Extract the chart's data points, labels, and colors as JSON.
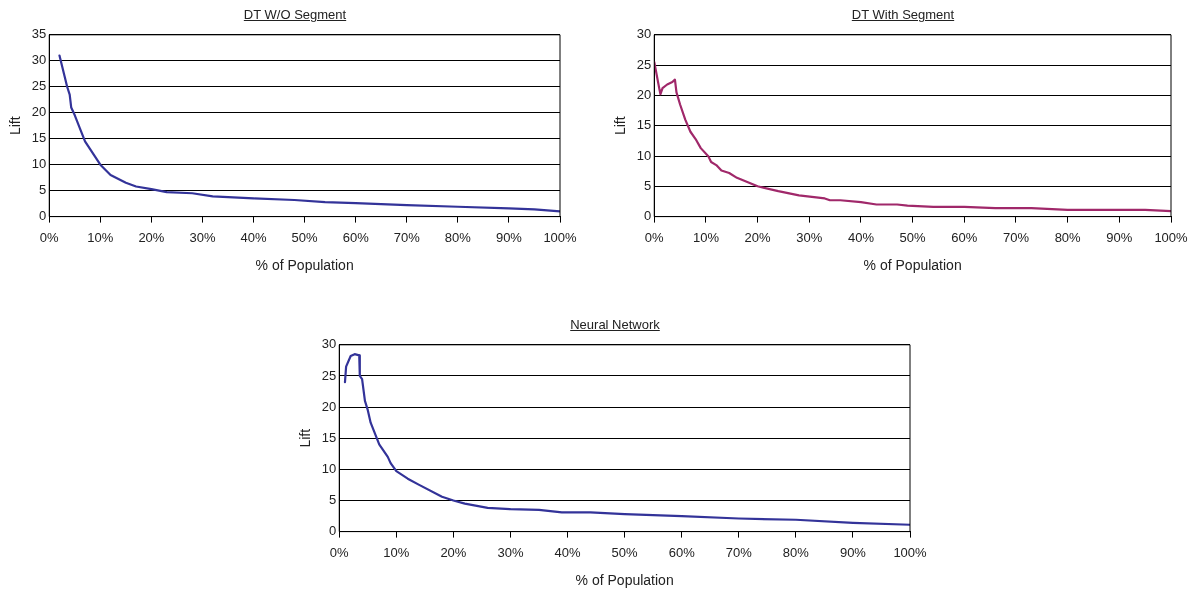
{
  "chart_data": [
    {
      "type": "line",
      "title": "DT W/O Segment",
      "xlabel": "% of Population",
      "ylabel": "Lift",
      "grid": "y",
      "marker": "none",
      "x": [
        2,
        3,
        3.5,
        4,
        4.3,
        5,
        6,
        7,
        8,
        10,
        12,
        15,
        17,
        20,
        23,
        28,
        32,
        40,
        48,
        54,
        60,
        70,
        80,
        90,
        95,
        100
      ],
      "series": [
        {
          "color": "#333399",
          "values": [
            31,
            27,
            25,
            23.5,
            21,
            19.5,
            17,
            14.5,
            13,
            10,
            8,
            6.5,
            5.8,
            5.3,
            4.7,
            4.5,
            3.9,
            3.5,
            3.2,
            2.8,
            2.6,
            2.2,
            1.9,
            1.6,
            1.4,
            1.0
          ]
        }
      ],
      "xlim": [
        0,
        100
      ],
      "ylim": [
        0,
        35
      ],
      "xticks": [
        {
          "value": 0,
          "label": "0%"
        },
        {
          "value": 10,
          "label": "10%"
        },
        {
          "value": 20,
          "label": "20%"
        },
        {
          "value": 30,
          "label": "30%"
        },
        {
          "value": 40,
          "label": "40%"
        },
        {
          "value": 50,
          "label": "50%"
        },
        {
          "value": 60,
          "label": "60%"
        },
        {
          "value": 70,
          "label": "70%"
        },
        {
          "value": 80,
          "label": "80%"
        },
        {
          "value": 90,
          "label": "90%"
        },
        {
          "value": 100,
          "label": "100%"
        }
      ],
      "yticks": [
        0,
        5,
        10,
        15,
        20,
        25,
        30,
        35
      ]
    },
    {
      "type": "line",
      "title": "DT With Segment",
      "xlabel": "% of Population",
      "ylabel": "Lift",
      "grid": "y",
      "marker": "none",
      "x": [
        0,
        1,
        1.2,
        1.6,
        2.5,
        3.5,
        4,
        4.3,
        5,
        6,
        7,
        8,
        9,
        10.5,
        11,
        12,
        13,
        14.5,
        16,
        20,
        24,
        28,
        33,
        34,
        36,
        40,
        43,
        47,
        49,
        54,
        60,
        66,
        73,
        80,
        90,
        95,
        100
      ],
      "series": [
        {
          "color": "#a0286a",
          "values": [
            25.5,
            21,
            20.2,
            21.2,
            21.8,
            22.2,
            22.6,
            20.5,
            18.5,
            16,
            14,
            12.8,
            11.3,
            9.9,
            9,
            8.5,
            7.6,
            7.2,
            6.4,
            5,
            4.2,
            3.5,
            3,
            2.7,
            2.7,
            2.4,
            2,
            2,
            1.8,
            1.6,
            1.6,
            1.4,
            1.4,
            1.1,
            1.1,
            1.1,
            0.9
          ]
        }
      ],
      "xlim": [
        0,
        100
      ],
      "ylim": [
        0,
        30
      ],
      "xticks": [
        {
          "value": 0,
          "label": "0%"
        },
        {
          "value": 10,
          "label": "10%"
        },
        {
          "value": 20,
          "label": "20%"
        },
        {
          "value": 30,
          "label": "30%"
        },
        {
          "value": 40,
          "label": "40%"
        },
        {
          "value": 50,
          "label": "50%"
        },
        {
          "value": 60,
          "label": "60%"
        },
        {
          "value": 70,
          "label": "70%"
        },
        {
          "value": 80,
          "label": "80%"
        },
        {
          "value": 90,
          "label": "90%"
        },
        {
          "value": 100,
          "label": "100%"
        }
      ],
      "yticks": [
        0,
        5,
        10,
        15,
        20,
        25,
        30
      ]
    },
    {
      "type": "line",
      "title": "Neural Network",
      "xlabel": "% of Population",
      "ylabel": "Lift",
      "grid": "y",
      "marker": "none",
      "x": [
        1,
        1.2,
        2,
        2.7,
        3.5,
        3.6,
        4,
        4.5,
        5,
        5.5,
        7,
        8.5,
        9,
        10,
        12,
        14,
        18,
        20,
        22,
        26,
        30,
        35,
        39,
        44,
        50,
        60,
        70,
        80,
        90,
        100
      ],
      "series": [
        {
          "color": "#333399",
          "values": [
            24,
            26.5,
            28.2,
            28.5,
            28.3,
            25,
            24.5,
            21,
            19.5,
            17.5,
            14,
            12,
            11,
            9.7,
            8.5,
            7.5,
            5.6,
            5,
            4.5,
            3.8,
            3.6,
            3.5,
            3.1,
            3.1,
            2.8,
            2.5,
            2.1,
            1.9,
            1.4,
            1.1
          ]
        }
      ],
      "xlim": [
        0,
        100
      ],
      "ylim": [
        0,
        30
      ],
      "xticks": [
        {
          "value": 0,
          "label": "0%"
        },
        {
          "value": 10,
          "label": "10%"
        },
        {
          "value": 20,
          "label": "20%"
        },
        {
          "value": 30,
          "label": "30%"
        },
        {
          "value": 40,
          "label": "40%"
        },
        {
          "value": 50,
          "label": "50%"
        },
        {
          "value": 60,
          "label": "60%"
        },
        {
          "value": 70,
          "label": "70%"
        },
        {
          "value": 80,
          "label": "80%"
        },
        {
          "value": 90,
          "label": "90%"
        },
        {
          "value": 100,
          "label": "100%"
        }
      ],
      "yticks": [
        0,
        5,
        10,
        15,
        20,
        25,
        30
      ]
    }
  ]
}
